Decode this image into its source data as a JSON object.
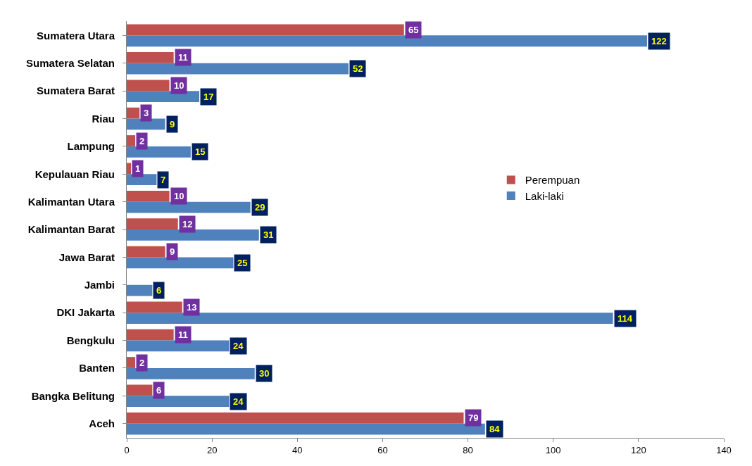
{
  "chart_data": {
    "type": "bar",
    "orientation": "horizontal",
    "categories": [
      "Sumatera Utara",
      "Sumatera Selatan",
      "Sumatera Barat",
      "Riau",
      "Lampung",
      "Kepulauan Riau",
      "Kalimantan Utara",
      "Kalimantan Barat",
      "Jawa Barat",
      "Jambi",
      "DKI Jakarta",
      "Bengkulu",
      "Banten",
      "Bangka Belitung",
      "Aceh"
    ],
    "series": [
      {
        "name": "Perempuan",
        "color": "#c0504d",
        "values": [
          65,
          11,
          10,
          3,
          2,
          1,
          10,
          12,
          9,
          null,
          13,
          11,
          2,
          6,
          79
        ]
      },
      {
        "name": "Laki-laki",
        "color": "#4f81bd",
        "values": [
          122,
          52,
          17,
          9,
          15,
          7,
          29,
          31,
          25,
          6,
          114,
          24,
          30,
          24,
          84
        ]
      }
    ],
    "xlim": [
      0,
      140
    ],
    "xticks": [
      0,
      20,
      40,
      60,
      80,
      100,
      120,
      140
    ],
    "data_labels": true,
    "legend": "right"
  }
}
